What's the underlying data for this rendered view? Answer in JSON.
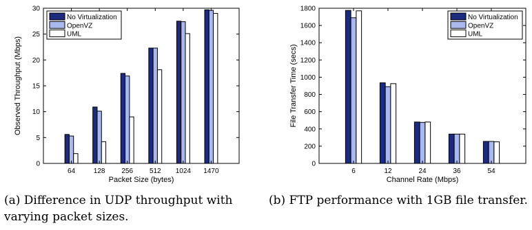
{
  "colors": {
    "no_virtualization": "#1c2b80",
    "openvz": "#a9b9f0",
    "uml": "#ffffff"
  },
  "chart_data": [
    {
      "type": "bar",
      "xlabel": "Packet Size (bytes)",
      "ylabel": "Observed Throughput (Mbps)",
      "categories": [
        "64",
        "128",
        "256",
        "512",
        "1024",
        "1470"
      ],
      "ylim": [
        0,
        30
      ],
      "yticks": [
        0,
        5,
        10,
        15,
        20,
        25,
        30
      ],
      "legend_position": "top-left",
      "grid": false,
      "series": [
        {
          "name": "No Virtualization",
          "values": [
            5.6,
            10.9,
            17.4,
            22.3,
            27.5,
            29.7
          ]
        },
        {
          "name": "OpenVZ",
          "values": [
            5.3,
            10.1,
            16.9,
            22.3,
            27.4,
            29.6
          ]
        },
        {
          "name": "UML",
          "values": [
            1.9,
            4.2,
            9.0,
            18.1,
            25.1,
            29.0
          ]
        }
      ]
    },
    {
      "type": "bar",
      "xlabel": "Channel Rate (Mbps)",
      "ylabel": "File Transfer Time (secs)",
      "categories": [
        "6",
        "12",
        "24",
        "36",
        "54"
      ],
      "ylim": [
        0,
        1800
      ],
      "yticks": [
        0,
        200,
        400,
        600,
        800,
        1000,
        1200,
        1400,
        1600,
        1800
      ],
      "legend_position": "top-right",
      "grid": false,
      "series": [
        {
          "name": "No Virtualization",
          "values": [
            1775,
            935,
            480,
            340,
            255
          ]
        },
        {
          "name": "OpenVZ",
          "values": [
            1690,
            890,
            475,
            340,
            255
          ]
        },
        {
          "name": "UML",
          "values": [
            1770,
            925,
            480,
            340,
            250
          ]
        }
      ]
    }
  ],
  "captions": {
    "a": "(a) Difference in UDP throughput with varying packet sizes.",
    "b": "(b) FTP performance with 1GB file transfer."
  }
}
